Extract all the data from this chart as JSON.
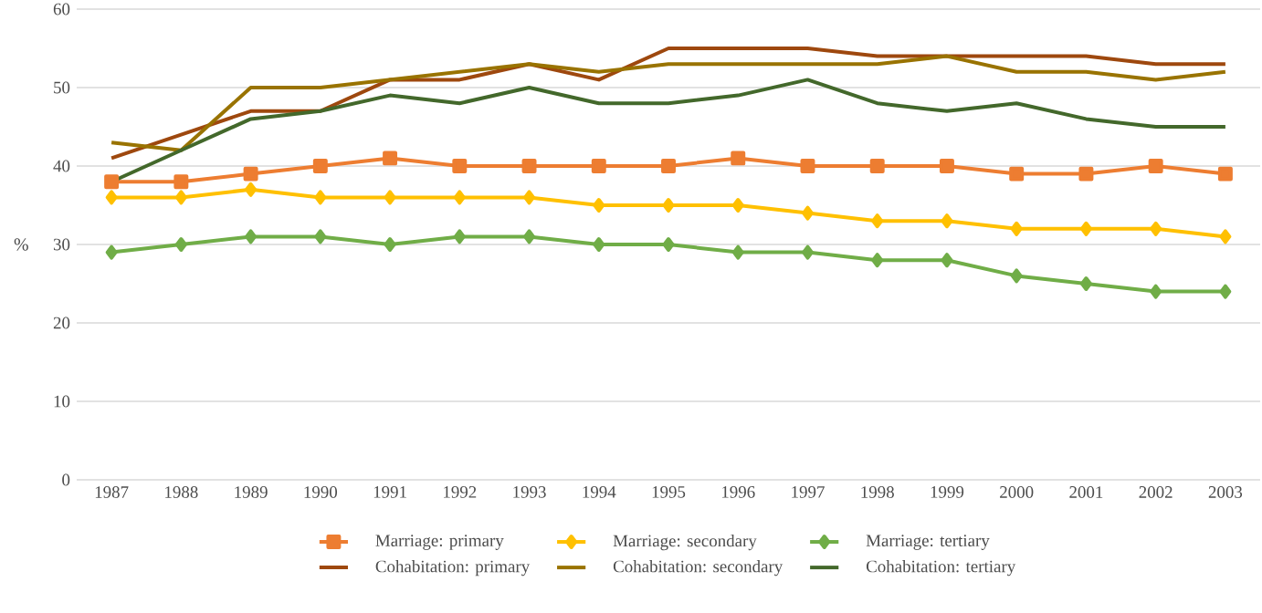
{
  "chart_data": {
    "type": "line",
    "ylabel": "%",
    "categories": [
      "1987",
      "1988",
      "1989",
      "1990",
      "1991",
      "1992",
      "1993",
      "1994",
      "1995",
      "1996",
      "1997",
      "1998",
      "1999",
      "2000",
      "2001",
      "2002",
      "2003"
    ],
    "ylim": [
      0,
      60
    ],
    "yticks": [
      0,
      10,
      20,
      30,
      40,
      50,
      60
    ],
    "grid": "y",
    "legend": "bottom",
    "series": [
      {
        "name": "Marriage: primary",
        "color": "#ed7d31",
        "marker": "square",
        "values": [
          38,
          38,
          39,
          40,
          41,
          40,
          40,
          40,
          40,
          41,
          40,
          40,
          40,
          39,
          39,
          40,
          39
        ]
      },
      {
        "name": "Marriage: secondary",
        "color": "#ffc000",
        "marker": "diamond",
        "values": [
          36,
          36,
          37,
          36,
          36,
          36,
          36,
          35,
          35,
          35,
          34,
          33,
          33,
          32,
          32,
          32,
          31
        ]
      },
      {
        "name": "Marriage: tertiary",
        "color": "#70ad47",
        "marker": "diamond",
        "values": [
          29,
          30,
          31,
          31,
          30,
          31,
          31,
          30,
          30,
          29,
          29,
          28,
          28,
          26,
          25,
          24,
          24
        ]
      },
      {
        "name": "Cohabitation: primary",
        "color": "#9e480e",
        "marker": "none",
        "values": [
          41,
          44,
          47,
          47,
          51,
          51,
          53,
          51,
          55,
          55,
          55,
          54,
          54,
          54,
          54,
          53,
          53
        ]
      },
      {
        "name": "Cohabitation: secondary",
        "color": "#997300",
        "marker": "none",
        "values": [
          43,
          42,
          50,
          50,
          51,
          52,
          53,
          52,
          53,
          53,
          53,
          53,
          54,
          52,
          52,
          51,
          52
        ]
      },
      {
        "name": "Cohabitation: tertiary",
        "color": "#43682b",
        "marker": "none",
        "values": [
          38,
          42,
          46,
          47,
          49,
          48,
          50,
          48,
          48,
          49,
          51,
          48,
          47,
          48,
          46,
          45,
          45
        ]
      }
    ]
  }
}
